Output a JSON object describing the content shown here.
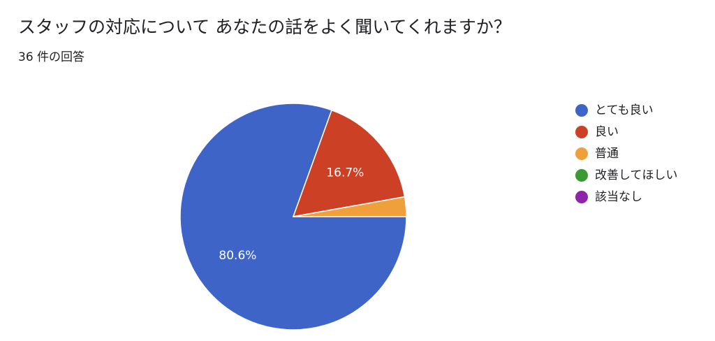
{
  "chart_data": {
    "type": "pie",
    "title": "スタッフの対応について あなたの話をよく聞いてくれますか？",
    "subtitle": "36 件の回答",
    "categories": [
      "とても良い",
      "良い",
      "普通",
      "改善してほしい",
      "該当なし"
    ],
    "values": [
      80.6,
      16.7,
      2.8,
      0,
      0
    ],
    "value_labels": [
      "80.6%",
      "16.7%",
      null,
      null,
      null
    ],
    "colors": [
      "#3f64c7",
      "#cc4125",
      "#f0a03a",
      "#3b9a34",
      "#8e24aa"
    ],
    "legend": "right"
  }
}
